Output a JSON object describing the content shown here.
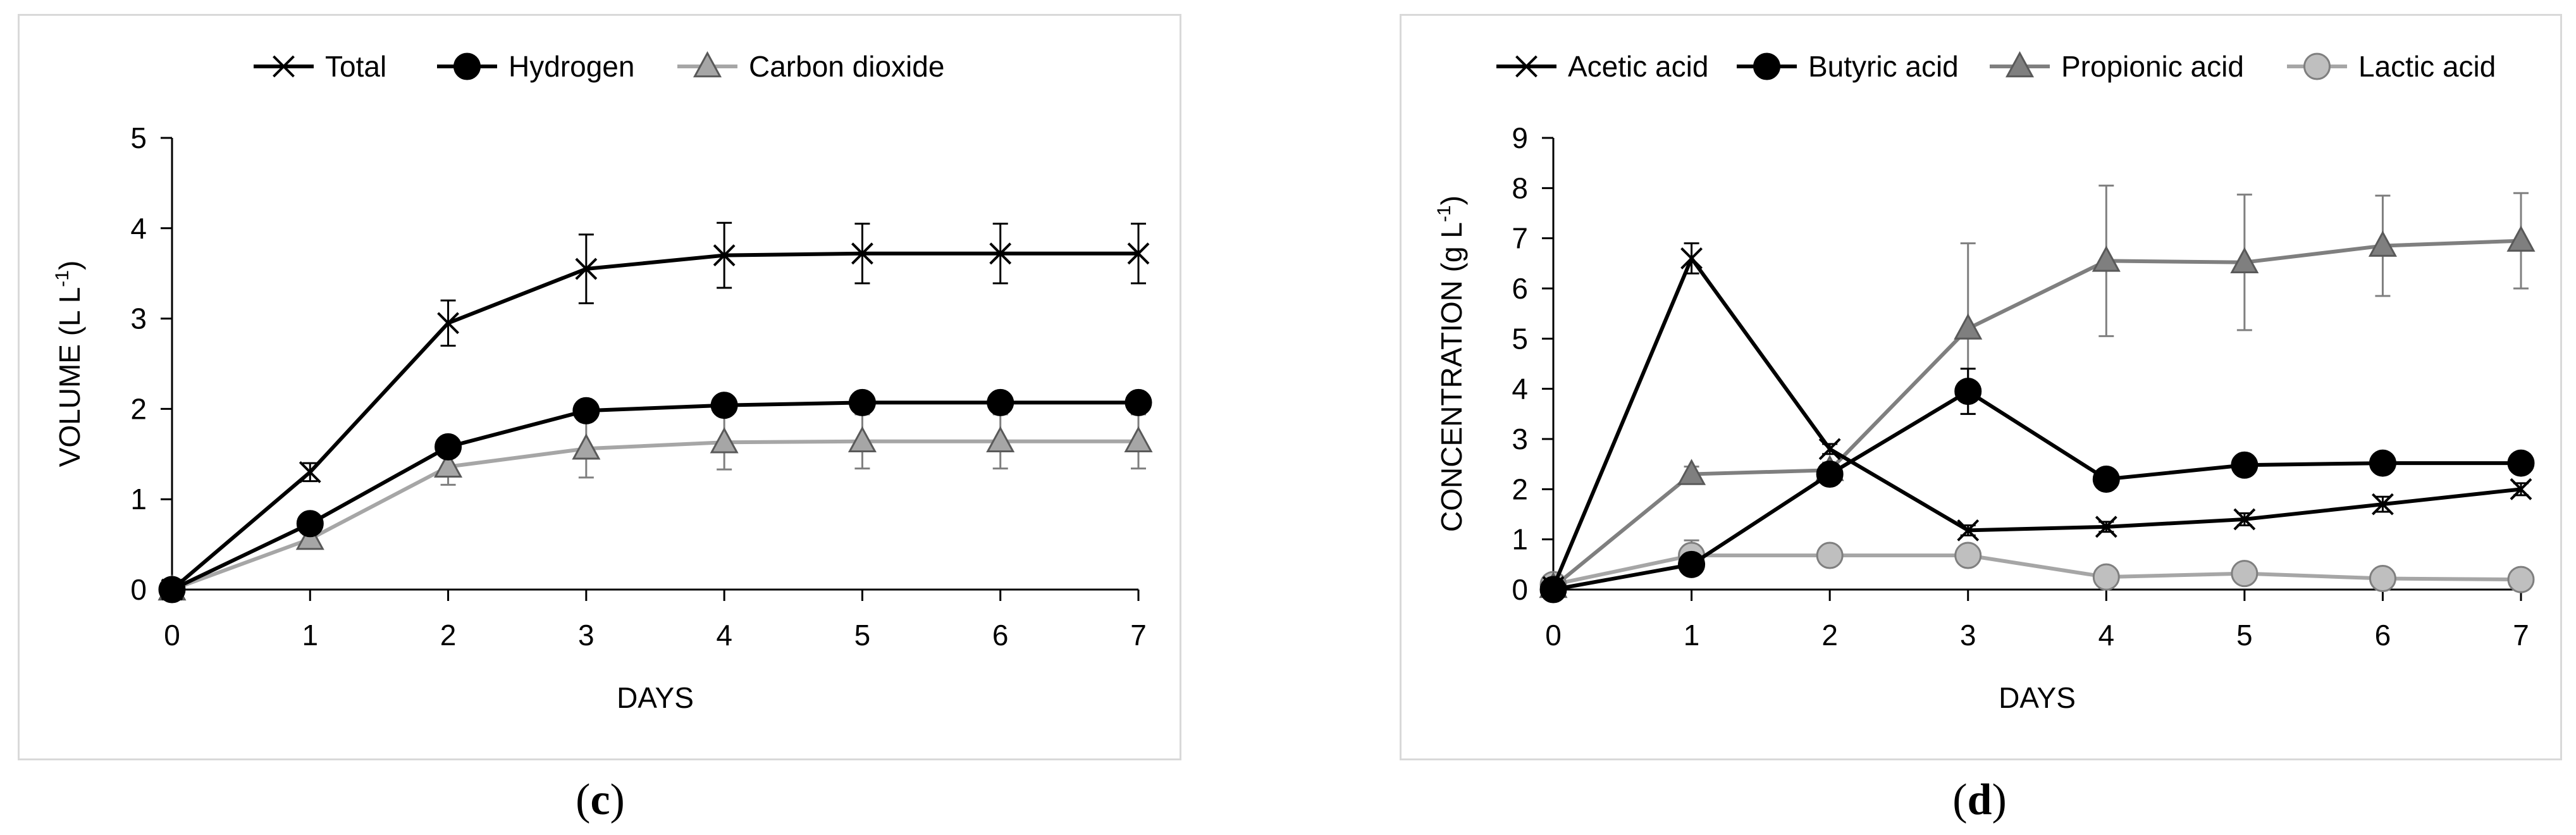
{
  "captions": {
    "c": "c",
    "d": "d"
  },
  "chart_data": [
    {
      "id": "c",
      "type": "line",
      "xlabel": "DAYS",
      "ylabel_main": "VOLUME (L L",
      "ylabel_sup": "-1",
      "ylabel_close": ")",
      "xlim": [
        0,
        7
      ],
      "ylim": [
        0,
        5
      ],
      "x_ticks": [
        0,
        1,
        2,
        3,
        4,
        5,
        6,
        7
      ],
      "y_ticks": [
        0,
        1,
        2,
        3,
        4,
        5
      ],
      "grid": false,
      "legend": "top",
      "x": [
        0,
        1,
        2,
        3,
        4,
        5,
        6,
        7
      ],
      "series": [
        {
          "name": "Total",
          "marker": "x",
          "color": "#000000",
          "values": [
            0,
            1.3,
            2.95,
            3.55,
            3.7,
            3.72,
            3.72,
            3.72
          ],
          "errors": [
            0,
            0.1,
            0.25,
            0.38,
            0.36,
            0.33,
            0.33,
            0.33
          ]
        },
        {
          "name": "Hydrogen",
          "marker": "circle",
          "color": "#000000",
          "values": [
            0,
            0.73,
            1.58,
            1.98,
            2.04,
            2.07,
            2.07,
            2.07
          ],
          "errors": [
            0,
            0.05,
            0.08,
            0.08,
            0.06,
            0.06,
            0.06,
            0.06
          ]
        },
        {
          "name": "Carbon dioxide",
          "marker": "triangle",
          "color": "#a6a6a6",
          "values": [
            0,
            0.56,
            1.36,
            1.56,
            1.63,
            1.64,
            1.64,
            1.64
          ],
          "errors": [
            0,
            0.05,
            0.2,
            0.32,
            0.3,
            0.3,
            0.3,
            0.3
          ]
        }
      ]
    },
    {
      "id": "d",
      "type": "line",
      "xlabel": "DAYS",
      "ylabel_main": "CONCENTRATION (g L",
      "ylabel_sup": "-1",
      "ylabel_close": ")",
      "xlim": [
        0,
        7
      ],
      "ylim": [
        0,
        9
      ],
      "x_ticks": [
        0,
        1,
        2,
        3,
        4,
        5,
        6,
        7
      ],
      "y_ticks": [
        0,
        1,
        2,
        3,
        4,
        5,
        6,
        7,
        8,
        9
      ],
      "grid": false,
      "legend": "top",
      "x": [
        0,
        1,
        2,
        3,
        4,
        5,
        6,
        7
      ],
      "series": [
        {
          "name": "Acetic acid",
          "marker": "x",
          "color": "#000000",
          "values": [
            0.05,
            6.6,
            2.8,
            1.18,
            1.25,
            1.4,
            1.7,
            2.0
          ],
          "errors": [
            0,
            0.3,
            0.1,
            0.1,
            0.1,
            0.12,
            0.15,
            0.12
          ]
        },
        {
          "name": "Butyric acid",
          "marker": "circle",
          "color": "#000000",
          "values": [
            0,
            0.5,
            2.3,
            3.95,
            2.2,
            2.48,
            2.52,
            2.52
          ],
          "errors": [
            0,
            0.1,
            0.15,
            0.45,
            0.2,
            0.1,
            0.1,
            0.1
          ]
        },
        {
          "name": "Propionic acid",
          "marker": "triangle",
          "color": "#7f7f7f",
          "values": [
            0.05,
            2.3,
            2.38,
            5.2,
            6.55,
            6.52,
            6.85,
            6.95
          ],
          "errors": [
            0,
            0.15,
            0.15,
            1.7,
            1.5,
            1.35,
            1.0,
            0.95
          ]
        },
        {
          "name": "Lactic acid",
          "marker": "circle",
          "color": "#a6a6a6",
          "fill": "#bfbfbf",
          "values": [
            0.1,
            0.68,
            0.68,
            0.68,
            0.25,
            0.32,
            0.22,
            0.2
          ],
          "errors": [
            0,
            0.3,
            0.05,
            0.05,
            0.05,
            0.05,
            0.05,
            0.05
          ]
        }
      ]
    }
  ]
}
